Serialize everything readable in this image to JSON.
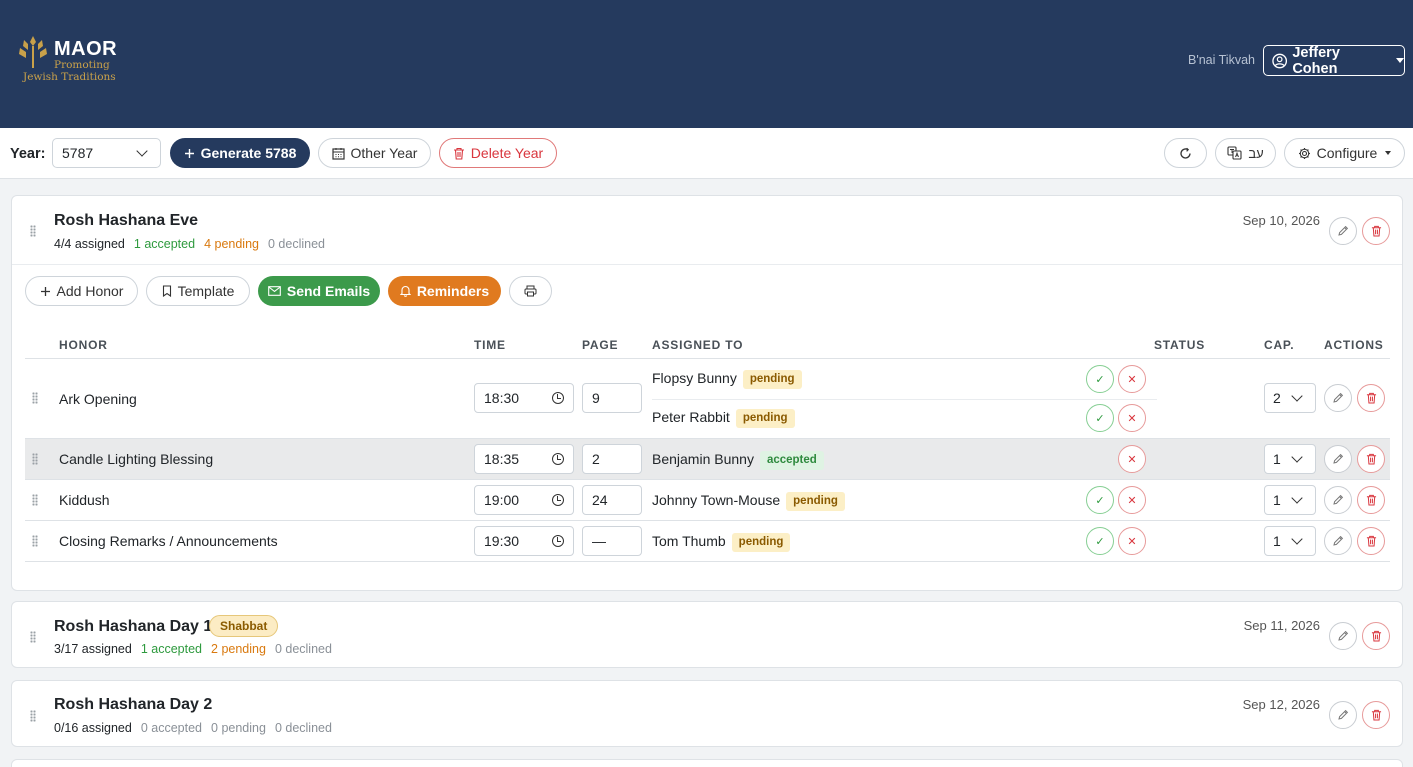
{
  "app": {
    "logo_title": "MAOR",
    "logo_sub1": "Promoting",
    "logo_sub2": "Jewish Traditions",
    "org": "B'nai Tikvah",
    "user": "Jeffery Cohen"
  },
  "toolbar": {
    "year_label": "Year:",
    "year_value": "5787",
    "generate_label": "Generate 5788",
    "other_year_label": "Other Year",
    "delete_year_label": "Delete Year",
    "lang_label": "עב",
    "configure_label": "Configure"
  },
  "events": [
    {
      "title": "Rosh Hashana Eve",
      "assigned": "4/4 assigned",
      "accepted": "1 accepted",
      "pending": "4 pending",
      "declined": "0 declined",
      "date": "Sep 10, 2026",
      "actions": {
        "add_honor": "Add Honor",
        "template": "Template",
        "send_emails": "Send Emails",
        "reminders": "Reminders"
      },
      "columns": [
        "HONOR",
        "TIME",
        "PAGE",
        "ASSIGNED TO",
        "STATUS",
        "CAP.",
        "ACTIONS"
      ],
      "rows": [
        {
          "honor": "Ark Opening",
          "time": "18:30",
          "page": "9",
          "cap": "2",
          "assignees": [
            {
              "name": "Flopsy Bunny",
              "status": "pending"
            },
            {
              "name": "Peter Rabbit",
              "status": "pending"
            }
          ]
        },
        {
          "honor": "Candle Lighting Blessing",
          "time": "18:35",
          "page": "2",
          "cap": "1",
          "assignees": [
            {
              "name": "Benjamin Bunny",
              "status": "accepted"
            }
          ]
        },
        {
          "honor": "Kiddush",
          "time": "19:00",
          "page": "24",
          "cap": "1",
          "assignees": [
            {
              "name": "Johnny Town-Mouse",
              "status": "pending"
            }
          ]
        },
        {
          "honor": "Closing Remarks / Announcements",
          "time": "19:30",
          "page": "—",
          "cap": "1",
          "assignees": [
            {
              "name": "Tom Thumb",
              "status": "pending"
            }
          ]
        }
      ]
    },
    {
      "title": "Rosh Hashana Day 1",
      "badge": "Shabbat",
      "assigned": "3/17 assigned",
      "accepted": "1 accepted",
      "pending": "2 pending",
      "declined": "0 declined",
      "date": "Sep 11, 2026"
    },
    {
      "title": "Rosh Hashana Day 2",
      "assigned": "0/16 assigned",
      "accepted": "0 accepted",
      "pending": "0 pending",
      "declined": "0 declined",
      "date": "Sep 12, 2026"
    }
  ],
  "colors": {
    "header_bg": "#253a5e",
    "accept_green": "#3c9a4b",
    "reminder_orange": "#e07a1f",
    "delete_red": "#d9363e"
  },
  "icons": [
    "user-circle-icon",
    "plus-icon",
    "calendar-icon",
    "trash-icon",
    "refresh-icon",
    "translate-icon",
    "gear-icon",
    "grip-icon",
    "pencil-icon",
    "bookmark-icon",
    "envelope-icon",
    "bell-icon",
    "printer-icon",
    "clock-icon",
    "check-icon",
    "x-icon",
    "chevron-down-icon"
  ]
}
